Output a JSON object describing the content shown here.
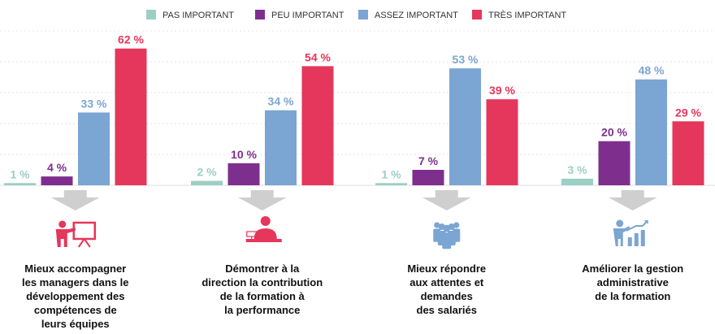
{
  "chart_data": {
    "type": "bar",
    "ylim": [
      0,
      70
    ],
    "grid": true,
    "legend_position": "top",
    "series": [
      {
        "name": "PAS IMPORTANT",
        "color": "#9ccfc4",
        "values": [
          1,
          2,
          1,
          3
        ]
      },
      {
        "name": "PEU IMPORTANT",
        "color": "#7e2f8e",
        "values": [
          4,
          10,
          7,
          20
        ]
      },
      {
        "name": "ASSEZ IMPORTANT",
        "color": "#7ba5d2",
        "values": [
          33,
          34,
          53,
          48
        ]
      },
      {
        "name": "TRÈS IMPORTANT",
        "color": "#e5365b",
        "values": [
          62,
          54,
          39,
          29
        ]
      }
    ],
    "value_suffix": " %",
    "categories": [
      {
        "icon": "presenter-board-icon",
        "lines": [
          "Mieux accompagner",
          "les managers dans le",
          "développement des",
          "compétences de",
          "leurs équipes"
        ]
      },
      {
        "icon": "person-at-desk-icon",
        "lines": [
          "Démontrer à la",
          "direction la contribution",
          "de la formation à",
          "la performance"
        ]
      },
      {
        "icon": "group-of-people-icon",
        "lines": [
          "Mieux répondre",
          "aux attentes et",
          "demandes",
          "des salariés"
        ]
      },
      {
        "icon": "presenter-growth-chart-icon",
        "lines": [
          "Améliorer la gestion",
          "administrative",
          "de la formation"
        ]
      }
    ],
    "arrow_color": "#cfcfcf",
    "icon_colors": {
      "accent": "#e5365b",
      "secondary": "#7ba5d2"
    }
  }
}
